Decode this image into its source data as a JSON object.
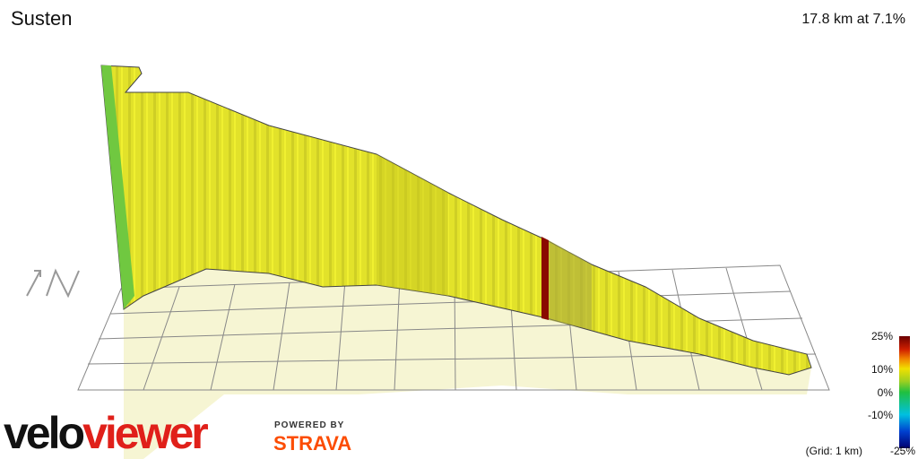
{
  "header": {
    "title": "Susten",
    "summary": "17.8 km at 7.1%"
  },
  "legend": {
    "labels": [
      "25%",
      "10%",
      "0%",
      "-10%",
      "-25%"
    ],
    "grid_note": "(Grid: 1 km)"
  },
  "branding": {
    "logo_part1": "velo",
    "logo_part2": "viewer",
    "powered_by": "POWERED BY",
    "partner": "STRAVA"
  }
}
